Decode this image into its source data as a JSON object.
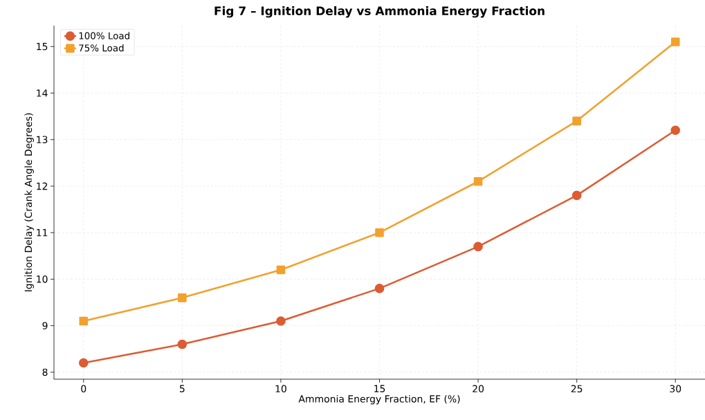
{
  "chart_data": {
    "type": "line",
    "title": "Fig 7 – Ignition Delay vs Ammonia Energy Fraction",
    "xlabel": "Ammonia Energy Fraction, EF (%)",
    "ylabel": "Ignition Delay (Crank Angle Degrees)",
    "x": [
      0,
      5,
      10,
      15,
      20,
      25,
      30
    ],
    "series": [
      {
        "name": "100% Load",
        "color": "#dd5c33",
        "marker": "circle",
        "values": [
          8.2,
          8.6,
          9.1,
          9.8,
          10.7,
          11.8,
          13.2
        ]
      },
      {
        "name": "75% Load",
        "color": "#f2a12d",
        "marker": "square",
        "values": [
          9.1,
          9.6,
          10.2,
          11.0,
          12.1,
          13.4,
          15.1
        ]
      }
    ],
    "xlim": [
      -1.5,
      31.5
    ],
    "ylim": [
      7.85,
      15.45
    ],
    "xticks": [
      0,
      5,
      10,
      15,
      20,
      25,
      30
    ],
    "yticks": [
      8,
      9,
      10,
      11,
      12,
      13,
      14,
      15
    ],
    "grid": true,
    "legend": "top left",
    "line_style": "solid"
  }
}
